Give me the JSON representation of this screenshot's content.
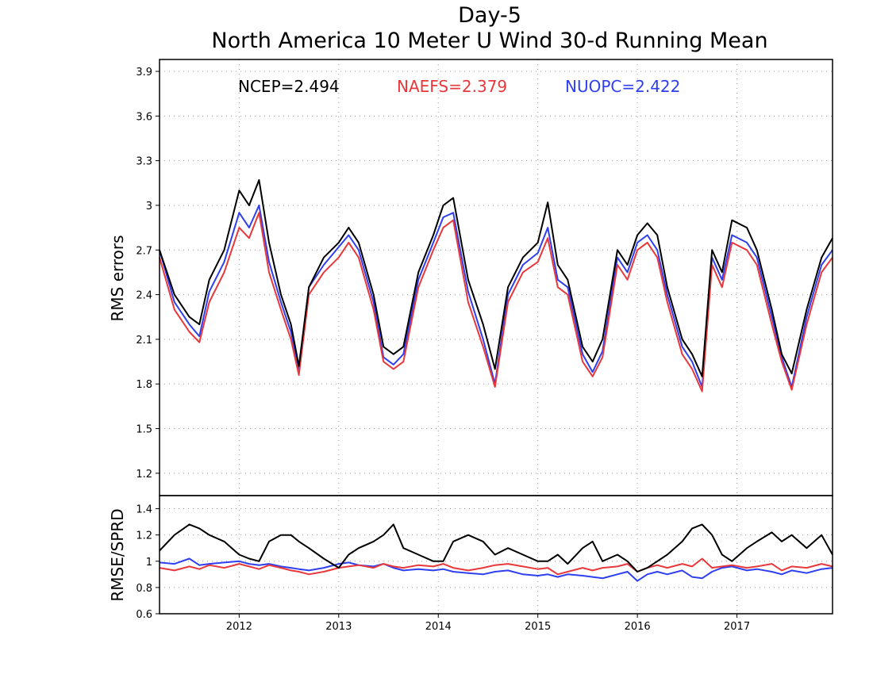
{
  "title_line1": "Day-5",
  "title_line2": "North America 10 Meter U Wind 30-d Running Mean",
  "colors": {
    "NCEP": "#000000",
    "NAEFS": "#e8383b",
    "NUOPC": "#2e3ff0"
  },
  "chart_data": [
    {
      "type": "line",
      "title": "North America 10 Meter U Wind 30-d Running Mean",
      "ylabel": "RMS errors",
      "xlabel": "",
      "xlim": [
        2011.2,
        2017.96
      ],
      "ylim": [
        1.05,
        3.98
      ],
      "yticks": [
        1.2,
        1.5,
        1.8,
        2.1,
        2.4,
        2.7,
        3,
        3.3,
        3.6,
        3.9
      ],
      "ytick_labels": [
        "1.2",
        "1.5",
        "1.8",
        "2.1",
        "2.4",
        "2.7",
        "3",
        "3.3",
        "3.6",
        "3.9"
      ],
      "xticks": [
        2012,
        2013,
        2014,
        2015,
        2016,
        2017
      ],
      "xtick_labels": [
        "2012",
        "2013",
        "2014",
        "2015",
        "2016",
        "2017"
      ],
      "grid": true,
      "legend_text": [
        "NCEP=2.494",
        "NAEFS=2.379",
        "NUOPC=2.422"
      ],
      "legend_position": "top",
      "x": [
        2011.2,
        2011.35,
        2011.5,
        2011.6,
        2011.7,
        2011.85,
        2012.0,
        2012.1,
        2012.2,
        2012.3,
        2012.42,
        2012.52,
        2012.6,
        2012.7,
        2012.85,
        2013.0,
        2013.1,
        2013.2,
        2013.35,
        2013.45,
        2013.55,
        2013.65,
        2013.8,
        2013.95,
        2014.05,
        2014.15,
        2014.3,
        2014.45,
        2014.57,
        2014.7,
        2014.85,
        2015.0,
        2015.1,
        2015.2,
        2015.3,
        2015.45,
        2015.55,
        2015.65,
        2015.8,
        2015.9,
        2016.0,
        2016.1,
        2016.2,
        2016.3,
        2016.45,
        2016.55,
        2016.65,
        2016.75,
        2016.85,
        2016.95,
        2017.1,
        2017.2,
        2017.35,
        2017.45,
        2017.55,
        2017.7,
        2017.85,
        2017.96
      ],
      "series": [
        {
          "name": "NCEP",
          "values": [
            2.7,
            2.4,
            2.25,
            2.2,
            2.5,
            2.7,
            3.1,
            3.0,
            3.17,
            2.75,
            2.4,
            2.2,
            1.92,
            2.45,
            2.65,
            2.75,
            2.85,
            2.75,
            2.4,
            2.05,
            2.0,
            2.05,
            2.55,
            2.8,
            3.0,
            3.05,
            2.5,
            2.2,
            1.9,
            2.45,
            2.65,
            2.75,
            3.02,
            2.6,
            2.5,
            2.05,
            1.95,
            2.1,
            2.7,
            2.6,
            2.8,
            2.88,
            2.8,
            2.45,
            2.1,
            2.0,
            1.85,
            2.7,
            2.55,
            2.9,
            2.85,
            2.7,
            2.3,
            2.0,
            1.87,
            2.3,
            2.65,
            2.78
          ]
        },
        {
          "name": "NAEFS",
          "values": [
            2.65,
            2.3,
            2.15,
            2.08,
            2.35,
            2.55,
            2.85,
            2.78,
            2.95,
            2.55,
            2.3,
            2.1,
            1.86,
            2.4,
            2.55,
            2.65,
            2.75,
            2.65,
            2.3,
            1.95,
            1.9,
            1.95,
            2.45,
            2.7,
            2.85,
            2.9,
            2.35,
            2.05,
            1.78,
            2.35,
            2.55,
            2.62,
            2.78,
            2.45,
            2.4,
            1.95,
            1.85,
            1.98,
            2.6,
            2.5,
            2.7,
            2.75,
            2.65,
            2.35,
            2.0,
            1.9,
            1.75,
            2.6,
            2.45,
            2.75,
            2.7,
            2.6,
            2.2,
            1.95,
            1.76,
            2.2,
            2.55,
            2.65
          ]
        },
        {
          "name": "NUOPC",
          "values": [
            2.7,
            2.35,
            2.2,
            2.12,
            2.42,
            2.62,
            2.95,
            2.85,
            3.0,
            2.62,
            2.35,
            2.15,
            1.9,
            2.45,
            2.6,
            2.72,
            2.8,
            2.7,
            2.35,
            1.98,
            1.93,
            2.0,
            2.5,
            2.75,
            2.92,
            2.95,
            2.42,
            2.1,
            1.8,
            2.4,
            2.6,
            2.68,
            2.85,
            2.5,
            2.45,
            2.0,
            1.88,
            2.02,
            2.65,
            2.55,
            2.75,
            2.8,
            2.7,
            2.4,
            2.05,
            1.95,
            1.78,
            2.65,
            2.5,
            2.8,
            2.75,
            2.65,
            2.25,
            1.98,
            1.78,
            2.25,
            2.6,
            2.7
          ]
        }
      ]
    },
    {
      "type": "line",
      "ylabel": "RMSE/SPRD",
      "xlabel": "",
      "xlim": [
        2011.2,
        2017.96
      ],
      "ylim": [
        0.6,
        1.5
      ],
      "yticks": [
        0.6,
        0.8,
        1,
        1.2,
        1.4
      ],
      "ytick_labels": [
        "0.6",
        "0.8",
        "1",
        "1.2",
        "1.4"
      ],
      "xticks": [
        2012,
        2013,
        2014,
        2015,
        2016,
        2017
      ],
      "xtick_labels": [
        "2012",
        "2013",
        "2014",
        "2015",
        "2016",
        "2017"
      ],
      "grid": true,
      "x": [
        2011.2,
        2011.35,
        2011.5,
        2011.6,
        2011.7,
        2011.85,
        2012.0,
        2012.1,
        2012.2,
        2012.3,
        2012.42,
        2012.52,
        2012.6,
        2012.7,
        2012.85,
        2013.0,
        2013.1,
        2013.2,
        2013.35,
        2013.45,
        2013.55,
        2013.65,
        2013.8,
        2013.95,
        2014.05,
        2014.15,
        2014.3,
        2014.45,
        2014.57,
        2014.7,
        2014.85,
        2015.0,
        2015.1,
        2015.2,
        2015.3,
        2015.45,
        2015.55,
        2015.65,
        2015.8,
        2015.9,
        2016.0,
        2016.1,
        2016.2,
        2016.3,
        2016.45,
        2016.55,
        2016.65,
        2016.75,
        2016.85,
        2016.95,
        2017.1,
        2017.2,
        2017.35,
        2017.45,
        2017.55,
        2017.7,
        2017.85,
        2017.96
      ],
      "series": [
        {
          "name": "NCEP",
          "values": [
            1.08,
            1.2,
            1.28,
            1.25,
            1.2,
            1.15,
            1.05,
            1.02,
            1.0,
            1.15,
            1.2,
            1.2,
            1.15,
            1.1,
            1.02,
            0.95,
            1.05,
            1.1,
            1.15,
            1.2,
            1.28,
            1.1,
            1.05,
            1.0,
            1.0,
            1.15,
            1.2,
            1.15,
            1.05,
            1.1,
            1.05,
            1.0,
            1.0,
            1.05,
            0.98,
            1.1,
            1.15,
            1.0,
            1.05,
            1.0,
            0.92,
            0.95,
            1.0,
            1.05,
            1.15,
            1.25,
            1.28,
            1.2,
            1.05,
            1.0,
            1.1,
            1.15,
            1.22,
            1.15,
            1.2,
            1.1,
            1.2,
            1.05
          ]
        },
        {
          "name": "NAEFS",
          "values": [
            0.95,
            0.93,
            0.96,
            0.94,
            0.97,
            0.95,
            0.98,
            0.96,
            0.94,
            0.97,
            0.95,
            0.93,
            0.92,
            0.9,
            0.92,
            0.95,
            0.96,
            0.97,
            0.95,
            0.98,
            0.96,
            0.95,
            0.97,
            0.96,
            0.98,
            0.95,
            0.93,
            0.95,
            0.97,
            0.98,
            0.96,
            0.94,
            0.95,
            0.9,
            0.92,
            0.95,
            0.93,
            0.95,
            0.96,
            0.98,
            0.92,
            0.95,
            0.97,
            0.95,
            0.98,
            0.96,
            1.02,
            0.95,
            0.96,
            0.97,
            0.95,
            0.96,
            0.98,
            0.93,
            0.96,
            0.95,
            0.98,
            0.96
          ]
        },
        {
          "name": "NUOPC",
          "values": [
            0.99,
            0.98,
            1.02,
            0.97,
            0.98,
            0.99,
            1.0,
            0.98,
            0.97,
            0.98,
            0.96,
            0.95,
            0.94,
            0.93,
            0.95,
            0.98,
            0.99,
            0.97,
            0.96,
            0.98,
            0.95,
            0.93,
            0.94,
            0.93,
            0.94,
            0.92,
            0.91,
            0.9,
            0.92,
            0.93,
            0.9,
            0.89,
            0.9,
            0.88,
            0.9,
            0.89,
            0.88,
            0.87,
            0.9,
            0.92,
            0.85,
            0.9,
            0.92,
            0.9,
            0.93,
            0.88,
            0.87,
            0.92,
            0.95,
            0.96,
            0.93,
            0.94,
            0.92,
            0.9,
            0.93,
            0.91,
            0.94,
            0.95
          ]
        }
      ]
    }
  ]
}
